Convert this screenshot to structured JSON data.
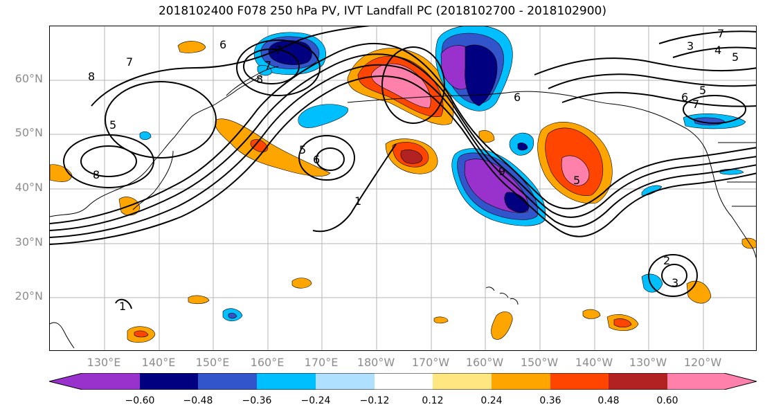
{
  "title": "2018102400 F078 250 hPa PV, IVT Landfall PC (2018102700 - 2018102900)",
  "lat_labels": [
    "60°N",
    "50°N",
    "40°N",
    "30°N",
    "20°N"
  ],
  "lon_labels": [
    "130°E",
    "140°E",
    "150°E",
    "160°E",
    "170°E",
    "180°W",
    "170°W",
    "160°W",
    "150°W",
    "140°W",
    "130°W",
    "120°W"
  ],
  "colorbar": {
    "tick_labels": [
      "−0.60",
      "−0.48",
      "−0.36",
      "−0.24",
      "−0.12",
      "0.12",
      "0.24",
      "0.36",
      "0.48",
      "0.60"
    ],
    "colors": [
      "#9932cc",
      "#000080",
      "#3355cc",
      "#00bfff",
      "#b0e0ff",
      "#ffffff",
      "#ffe680",
      "#ffa500",
      "#ff4500",
      "#b22222",
      "#ff80aa"
    ]
  },
  "contour_labels": [
    "6",
    "7",
    "7",
    "8",
    "7",
    "8",
    "5",
    "8",
    "5",
    "6",
    "1",
    "9",
    "5",
    "6",
    "7",
    "3",
    "4",
    "5",
    "6",
    "5",
    "7",
    "2",
    "3",
    "1"
  ]
}
